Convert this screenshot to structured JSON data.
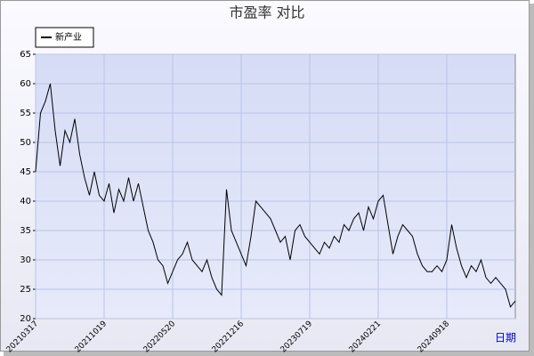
{
  "chart_data": {
    "type": "line",
    "title": "市盈率  对比",
    "x_label": "日期",
    "categories": [
      "20210317",
      null,
      null,
      null,
      null,
      null,
      null,
      null,
      null,
      null,
      null,
      null,
      null,
      null,
      "20211019",
      null,
      null,
      null,
      null,
      null,
      null,
      null,
      null,
      null,
      null,
      null,
      null,
      null,
      "20220520",
      null,
      null,
      null,
      null,
      null,
      null,
      null,
      null,
      null,
      null,
      null,
      null,
      null,
      "20221216",
      null,
      null,
      null,
      null,
      null,
      null,
      null,
      null,
      null,
      null,
      null,
      null,
      null,
      "20230719",
      null,
      null,
      null,
      null,
      null,
      null,
      null,
      null,
      null,
      null,
      null,
      null,
      null,
      "20240221",
      null,
      null,
      null,
      null,
      null,
      null,
      null,
      null,
      null,
      null,
      null,
      null,
      null,
      "20240918",
      null,
      null,
      null,
      null,
      null,
      null,
      null,
      null,
      null,
      null,
      null,
      null,
      null,
      null
    ],
    "series": [
      {
        "name": "新产业",
        "color": "#000000",
        "values": [
          45,
          55,
          57,
          60,
          52,
          46,
          52,
          50,
          54,
          48,
          44,
          41,
          45,
          41,
          40,
          43,
          38,
          42,
          40,
          44,
          40,
          43,
          39,
          35,
          33,
          30,
          29,
          26,
          28,
          30,
          31,
          33,
          30,
          29,
          28,
          30,
          27,
          25,
          24,
          42,
          35,
          33,
          31,
          29,
          34,
          40,
          39,
          38,
          37,
          35,
          33,
          34,
          30,
          35,
          36,
          34,
          33,
          32,
          31,
          33,
          32,
          34,
          33,
          36,
          35,
          37,
          38,
          35,
          39,
          37,
          40,
          41,
          36,
          31,
          34,
          36,
          35,
          34,
          31,
          29,
          28,
          28,
          29,
          28,
          30,
          36,
          32,
          29,
          27,
          29,
          28,
          30,
          27,
          26,
          27,
          26,
          25,
          22,
          23
        ]
      }
    ],
    "ylim": [
      20,
      65
    ],
    "yticks": [
      20,
      25,
      30,
      35,
      40,
      45,
      50,
      55,
      60,
      65
    ],
    "grid": true,
    "legend": "top-left"
  }
}
